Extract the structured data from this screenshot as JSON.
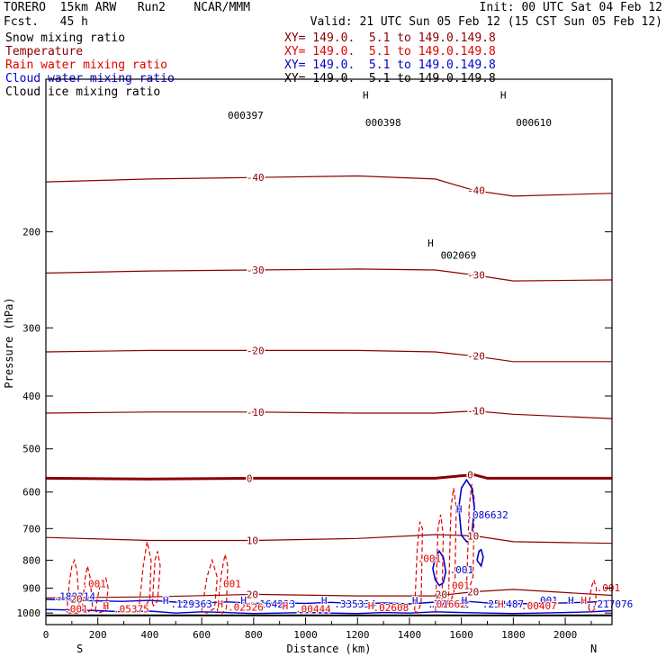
{
  "header": {
    "model": "TORERO  15km ARW   Run2    NCAR/MMM",
    "fcst": "Fcst.   45 h",
    "init": "Init: 00 UTC Sat 04 Feb 12",
    "valid": "Valid: 21 UTC Sun 05 Feb 12 (15 CST Sun 05 Feb 12)"
  },
  "legend": [
    {
      "name": "Snow mixing ratio",
      "color": "#000000",
      "xy": ""
    },
    {
      "name": "Temperature",
      "color": "#8b0000",
      "xy": "XY= 149.0.  5.1 to 149.0.149.8"
    },
    {
      "name": "Rain water mixing ratio",
      "color": "#e00000",
      "xy": "XY= 149.0.  5.1 to 149.0.149.8"
    },
    {
      "name": "Cloud water mixing ratio",
      "color": "#0000cc",
      "xy": "XY= 149.0.  5.1 to 149.0.149.8"
    },
    {
      "name": "Cloud ice mixing ratio",
      "color": "#000000",
      "xy": "XY= 149.0.  5.1 to 149.0.149.8"
    }
  ],
  "chart_data": {
    "type": "line",
    "xlabel": "Distance (km)",
    "ylabel": "Pressure (hPa)",
    "xlim": [
      0,
      2180
    ],
    "ylim": [
      1050,
      105
    ],
    "y_scale": "log",
    "x_ticks": [
      0,
      200,
      400,
      600,
      800,
      1000,
      1200,
      1400,
      1600,
      1800,
      2000
    ],
    "y_ticks": [
      200,
      300,
      400,
      500,
      600,
      700,
      800,
      900,
      1000
    ],
    "x_end_labels": [
      "S",
      "N"
    ],
    "temperature_isotherms": [
      {
        "label": "-40",
        "x": [
          0,
          400,
          800,
          1200,
          1500,
          1650,
          1800,
          2180
        ],
        "p": [
          162,
          160,
          159,
          158,
          160,
          168,
          172,
          170
        ]
      },
      {
        "label": "-30",
        "x": [
          0,
          400,
          800,
          1200,
          1500,
          1650,
          1800,
          2180
        ],
        "p": [
          238,
          236,
          235,
          234,
          235,
          240,
          246,
          245
        ]
      },
      {
        "label": "-20",
        "x": [
          0,
          400,
          800,
          1200,
          1500,
          1650,
          1800,
          2180
        ],
        "p": [
          332,
          330,
          330,
          330,
          332,
          338,
          346,
          346
        ]
      },
      {
        "label": "-10",
        "x": [
          0,
          400,
          800,
          1200,
          1500,
          1650,
          1800,
          2180
        ],
        "p": [
          430,
          428,
          428,
          430,
          430,
          426,
          432,
          440
        ]
      },
      {
        "label": "0",
        "x": [
          0,
          400,
          800,
          1200,
          1500,
          1600,
          1650,
          1700,
          2180
        ],
        "p": [
          566,
          568,
          566,
          566,
          566,
          560,
          558,
          566,
          566
        ]
      },
      {
        "label": "10",
        "x": [
          0,
          400,
          800,
          1200,
          1500,
          1650,
          1800,
          2180
        ],
        "p": [
          727,
          736,
          736,
          730,
          718,
          722,
          740,
          745
        ]
      },
      {
        "label": "20",
        "x": [
          0,
          400,
          800,
          1200,
          1500,
          1650,
          1800,
          2180
        ],
        "p": [
          938,
          934,
          924,
          930,
          930,
          914,
          905,
          928
        ]
      }
    ],
    "freezing_level_hPa": 566,
    "surface_hPa": 1010,
    "annotations": [
      {
        "text": "000397",
        "x": 700,
        "p": 124,
        "color": "#000000"
      },
      {
        "text": "000398",
        "x": 1230,
        "p": 128,
        "color": "#000000"
      },
      {
        "text": "000610",
        "x": 1810,
        "p": 128,
        "color": "#000000"
      },
      {
        "text": "002069",
        "x": 1520,
        "p": 224,
        "color": "#000000"
      },
      {
        "text": "H",
        "x": 1470,
        "p": 213,
        "color": "#000000"
      },
      {
        "text": ".001",
        "x": 1430,
        "p": 806,
        "color": "#e00000"
      },
      {
        "text": ".001",
        "x": 1540,
        "p": 904,
        "color": "#e00000"
      },
      {
        "text": ".001",
        "x": 660,
        "p": 896,
        "color": "#e00000"
      },
      {
        "text": ".001",
        "x": 140,
        "p": 896,
        "color": "#e00000"
      },
      {
        "text": ".001",
        "x": 2120,
        "p": 912,
        "color": "#e00000"
      },
      {
        "text": ".001",
        "x": 1555,
        "p": 846,
        "color": "#0000cc"
      },
      {
        "text": ".001",
        "x": 1880,
        "p": 963,
        "color": "#0000cc"
      },
      {
        "text": ".086632",
        "x": 1620,
        "p": 670,
        "color": "#0000cc"
      },
      {
        "text": "H",
        "x": 1580,
        "p": 654,
        "color": "#0000cc"
      },
      {
        "text": ".129363",
        "x": 480,
        "p": 976,
        "color": "#0000cc"
      },
      {
        "text": ".164223",
        "x": 800,
        "p": 976,
        "color": "#0000cc"
      },
      {
        "text": ".335334",
        "x": 1110,
        "p": 976,
        "color": "#0000cc"
      },
      {
        "text": ".376432",
        "x": 1470,
        "p": 976,
        "color": "#0000cc"
      },
      {
        "text": ".252487",
        "x": 1680,
        "p": 976,
        "color": "#0000cc"
      },
      {
        "text": ".217076",
        "x": 2100,
        "p": 976,
        "color": "#0000cc"
      },
      {
        "text": ".189314",
        "x": 30,
        "p": 946,
        "color": "#0000cc"
      },
      {
        "text": ".05375",
        "x": 260,
        "p": 998,
        "color": "#e00000"
      },
      {
        "text": ".02526",
        "x": 700,
        "p": 990,
        "color": "#e00000"
      },
      {
        "text": ".00444",
        "x": 960,
        "p": 998,
        "color": "#e00000"
      },
      {
        "text": ".02608",
        "x": 1260,
        "p": 992,
        "color": "#e00000"
      },
      {
        "text": ".00407",
        "x": 1830,
        "p": 984,
        "color": "#e00000"
      },
      {
        "text": ".001",
        "x": 70,
        "p": 998,
        "color": "#e00000"
      },
      {
        "text": ".01662",
        "x": 1480,
        "p": 976,
        "color": "#e00000"
      },
      {
        "text": "H",
        "x": 450,
        "p": 962,
        "color": "#0000cc"
      },
      {
        "text": "H",
        "x": 750,
        "p": 962,
        "color": "#0000cc"
      },
      {
        "text": "H",
        "x": 1060,
        "p": 962,
        "color": "#0000cc"
      },
      {
        "text": "H",
        "x": 1410,
        "p": 962,
        "color": "#0000cc"
      },
      {
        "text": "H",
        "x": 1600,
        "p": 962,
        "color": "#0000cc"
      },
      {
        "text": "H",
        "x": 2010,
        "p": 962,
        "color": "#0000cc"
      },
      {
        "text": "H",
        "x": 2060,
        "p": 962,
        "color": "#e00000"
      },
      {
        "text": "H",
        "x": 220,
        "p": 985,
        "color": "#e00000"
      },
      {
        "text": "H",
        "x": 660,
        "p": 976,
        "color": "#e00000"
      },
      {
        "text": "H",
        "x": 910,
        "p": 985,
        "color": "#e00000"
      },
      {
        "text": "H",
        "x": 1240,
        "p": 985,
        "color": "#e00000"
      },
      {
        "text": "H",
        "x": 1740,
        "p": 976,
        "color": "#e00000"
      },
      {
        "text": "H",
        "x": 1220,
        "p": 114,
        "color": "#000000"
      },
      {
        "text": "H",
        "x": 1750,
        "p": 114,
        "color": "#000000"
      },
      {
        "text": "20",
        "x": 95,
        "p": 956,
        "color": "#8b0000"
      },
      {
        "text": "20",
        "x": 1500,
        "p": 938,
        "color": "#8b0000"
      }
    ],
    "rain_contours": [
      {
        "x": [
          80,
          90,
          100,
          110,
          120,
          130,
          90,
          80
        ],
        "p": [
          1000,
          880,
          820,
          800,
          840,
          1000,
          1000,
          1000
        ]
      },
      {
        "x": [
          140,
          150,
          160,
          170,
          180,
          160,
          140
        ],
        "p": [
          980,
          870,
          820,
          860,
          980,
          1000,
          980
        ]
      },
      {
        "x": [
          190,
          210,
          230,
          240,
          230,
          200,
          190
        ],
        "p": [
          990,
          880,
          860,
          900,
          990,
          1000,
          990
        ]
      },
      {
        "x": [
          360,
          375,
          390,
          405,
          400,
          380,
          360
        ],
        "p": [
          960,
          820,
          740,
          800,
          940,
          980,
          960
        ]
      },
      {
        "x": [
          410,
          420,
          430,
          440,
          430,
          415,
          410
        ],
        "p": [
          960,
          800,
          770,
          820,
          950,
          970,
          960
        ]
      },
      {
        "x": [
          600,
          620,
          640,
          660,
          650,
          620,
          600
        ],
        "p": [
          990,
          860,
          800,
          860,
          980,
          1000,
          990
        ]
      },
      {
        "x": [
          660,
          675,
          690,
          700,
          695,
          680,
          660
        ],
        "p": [
          990,
          850,
          780,
          820,
          980,
          1000,
          990
        ]
      },
      {
        "x": [
          1420,
          1430,
          1440,
          1450,
          1445,
          1430,
          1420
        ],
        "p": [
          990,
          760,
          680,
          700,
          960,
          1000,
          990
        ]
      },
      {
        "x": [
          1500,
          1510,
          1520,
          1530,
          1525,
          1510,
          1500
        ],
        "p": [
          990,
          700,
          660,
          720,
          960,
          980,
          990
        ]
      },
      {
        "x": [
          1550,
          1560,
          1570,
          1580,
          1575,
          1560,
          1550
        ],
        "p": [
          960,
          640,
          590,
          640,
          900,
          950,
          960
        ]
      },
      {
        "x": [
          1620,
          1630,
          1640,
          1650,
          1645,
          1630,
          1620
        ],
        "p": [
          900,
          640,
          580,
          620,
          860,
          900,
          900
        ]
      },
      {
        "x": [
          2090,
          2100,
          2110,
          2120,
          2115,
          2100,
          2090
        ],
        "p": [
          980,
          900,
          870,
          900,
          980,
          1000,
          980
        ]
      }
    ],
    "cloud_contours": [
      {
        "x": [
          1590,
          1600,
          1620,
          1640,
          1650,
          1640,
          1620,
          1600,
          1590
        ],
        "p": [
          640,
          590,
          570,
          590,
          640,
          720,
          740,
          720,
          640
        ]
      },
      {
        "x": [
          1490,
          1500,
          1515,
          1530,
          1540,
          1530,
          1515,
          1500,
          1490
        ],
        "p": [
          830,
          790,
          770,
          790,
          840,
          880,
          890,
          870,
          830
        ]
      },
      {
        "x": [
          1660,
          1668,
          1676,
          1684,
          1676,
          1668,
          1660
        ],
        "p": [
          800,
          770,
          765,
          790,
          820,
          810,
          800
        ]
      }
    ],
    "cloud_band": {
      "x": [
        0,
        200,
        300,
        400,
        500,
        600,
        700,
        800,
        900,
        1000,
        1100,
        1200,
        1300,
        1400,
        1500,
        1600,
        1700,
        1800,
        1900,
        2000,
        2100,
        2180
      ],
      "top": [
        944,
        950,
        952,
        948,
        955,
        958,
        954,
        960,
        958,
        960,
        956,
        962,
        958,
        962,
        955,
        950,
        958,
        962,
        960,
        958,
        955,
        948
      ],
      "bottom": [
        985,
        990,
        995,
        992,
        1000,
        995,
        998,
        1002,
        1000,
        998,
        1000,
        1002,
        998,
        1000,
        995,
        998,
        1000,
        1002,
        1000,
        998,
        995,
        990
      ]
    }
  }
}
